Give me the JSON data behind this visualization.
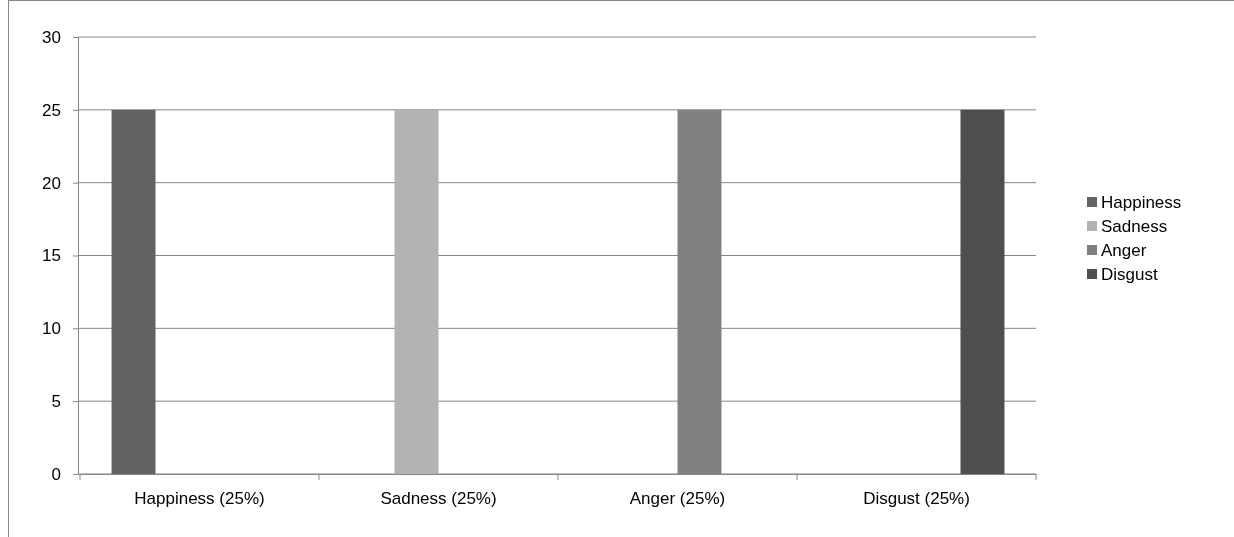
{
  "chart_data": {
    "type": "bar",
    "categories": [
      "Happiness (25%)",
      "Sadness (25%)",
      "Anger (25%)",
      "Disgust (25%)"
    ],
    "series": [
      {
        "name": "Happiness",
        "color": "#636363",
        "values": [
          25,
          null,
          null,
          null
        ]
      },
      {
        "name": "Sadness",
        "color": "#b3b3b3",
        "values": [
          null,
          25,
          null,
          null
        ]
      },
      {
        "name": "Anger",
        "color": "#808080",
        "values": [
          null,
          null,
          25,
          null
        ]
      },
      {
        "name": "Disgust",
        "color": "#4f4f4f",
        "values": [
          null,
          null,
          null,
          25
        ]
      }
    ],
    "ylim": [
      0,
      30
    ],
    "yticks": [
      0,
      5,
      10,
      15,
      20,
      25,
      30
    ],
    "grid": "y",
    "legend": "right"
  }
}
